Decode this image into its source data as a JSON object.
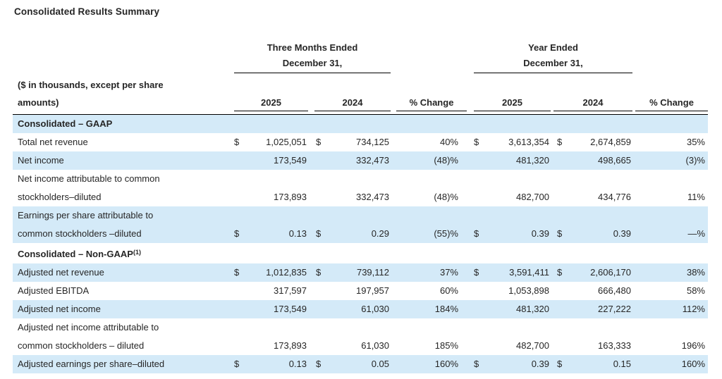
{
  "title": "Consolidated Results Summary",
  "colors": {
    "shaded_row": "#d4eaf8",
    "text": "#262626",
    "line": "#000000"
  },
  "table": {
    "left_header": {
      "line1": "($ in thousands, except per share",
      "line2": "amounts)"
    },
    "groups": [
      {
        "title": "Three Months Ended",
        "subtitle": "December 31,"
      },
      {
        "title": "Year Ended",
        "subtitle": "December 31,"
      }
    ],
    "col_headers": [
      "2025",
      "2024",
      "% Change"
    ],
    "rows": [
      {
        "section": true,
        "shaded": true,
        "top_border": true,
        "label_lines": [
          "Consolidated – GAAP"
        ]
      },
      {
        "label_lines": [
          "Total net revenue"
        ],
        "cells": [
          {
            "d": "$",
            "v": "1,025,051"
          },
          {
            "d": "$",
            "v": "734,125"
          },
          {
            "v": "40%"
          },
          {
            "d": "$",
            "v": "3,613,354"
          },
          {
            "d": "$",
            "v": "2,674,859"
          },
          {
            "v": "35%"
          }
        ]
      },
      {
        "shaded": true,
        "label_lines": [
          "Net income"
        ],
        "cells": [
          {
            "v": "173,549"
          },
          {
            "v": "332,473"
          },
          {
            "v": "(48)%"
          },
          {
            "v": "481,320"
          },
          {
            "v": "498,665"
          },
          {
            "v": "(3)%"
          }
        ]
      },
      {
        "label_lines": [
          "Net income attributable to common",
          "stockholders–diluted"
        ],
        "cells": [
          {
            "v": "173,893"
          },
          {
            "v": "332,473"
          },
          {
            "v": "(48)%"
          },
          {
            "v": "482,700"
          },
          {
            "v": "434,776"
          },
          {
            "v": "11%"
          }
        ]
      },
      {
        "shaded": true,
        "label_lines": [
          "Earnings per share attributable to",
          "common stockholders –diluted"
        ],
        "cells": [
          {
            "d": "$",
            "v": "0.13"
          },
          {
            "d": "$",
            "v": "0.29"
          },
          {
            "v": "(55)%"
          },
          {
            "d": "$",
            "v": "0.39"
          },
          {
            "d": "$",
            "v": "0.39"
          },
          {
            "v": "—%"
          }
        ]
      },
      {
        "section": true,
        "label_lines": [
          "Consolidated – Non-GAAP"
        ],
        "sup": "(1)"
      },
      {
        "shaded": true,
        "label_lines": [
          "Adjusted net revenue"
        ],
        "cells": [
          {
            "d": "$",
            "v": "1,012,835"
          },
          {
            "d": "$",
            "v": "739,112"
          },
          {
            "v": "37%"
          },
          {
            "d": "$",
            "v": "3,591,411"
          },
          {
            "d": "$",
            "v": "2,606,170"
          },
          {
            "v": "38%"
          }
        ]
      },
      {
        "label_lines": [
          "Adjusted EBITDA"
        ],
        "cells": [
          {
            "v": "317,597"
          },
          {
            "v": "197,957"
          },
          {
            "v": "60%"
          },
          {
            "v": "1,053,898"
          },
          {
            "v": "666,480"
          },
          {
            "v": "58%"
          }
        ]
      },
      {
        "shaded": true,
        "label_lines": [
          "Adjusted net income"
        ],
        "cells": [
          {
            "v": "173,549"
          },
          {
            "v": "61,030"
          },
          {
            "v": "184%"
          },
          {
            "v": "481,320"
          },
          {
            "v": "227,222"
          },
          {
            "v": "112%"
          }
        ]
      },
      {
        "label_lines": [
          "Adjusted net income attributable to",
          "common stockholders – diluted"
        ],
        "cells": [
          {
            "v": "173,893"
          },
          {
            "v": "61,030"
          },
          {
            "v": "185%"
          },
          {
            "v": "482,700"
          },
          {
            "v": "163,333"
          },
          {
            "v": "196%"
          }
        ]
      },
      {
        "shaded": true,
        "label_lines": [
          "Adjusted earnings per share–diluted"
        ],
        "cells": [
          {
            "d": "$",
            "v": "0.13"
          },
          {
            "d": "$",
            "v": "0.05"
          },
          {
            "v": "160%"
          },
          {
            "d": "$",
            "v": "0.39"
          },
          {
            "d": "$",
            "v": "0.15"
          },
          {
            "v": "160%"
          }
        ]
      }
    ]
  }
}
